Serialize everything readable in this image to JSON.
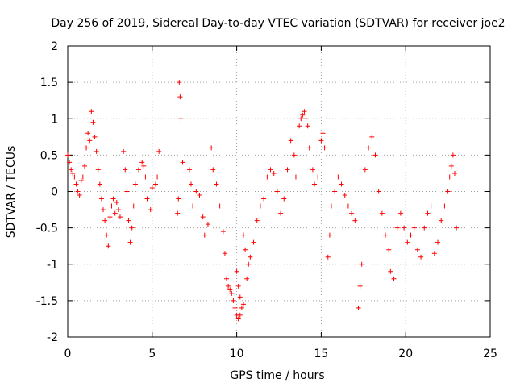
{
  "chart_data": {
    "type": "scatter",
    "title": "Day 256 of 2019, Sidereal Day-to-day VTEC variation (SDTVAR) for receiver joe2",
    "xlabel": "GPS time / hours",
    "ylabel": "SDTVAR / TECUs",
    "xlim": [
      0,
      25
    ],
    "ylim": [
      -2,
      2
    ],
    "xticks": [
      0,
      5,
      10,
      15,
      20,
      25
    ],
    "yticks": [
      -2,
      -1.5,
      -1,
      -0.5,
      0,
      0.5,
      1,
      1.5,
      2
    ],
    "grid": true,
    "marker": "+",
    "marker_color": "#ff0000",
    "series": [
      {
        "name": "SDTVAR",
        "color": "#ff0000",
        "points": [
          [
            0.0,
            0.5
          ],
          [
            0.1,
            0.4
          ],
          [
            0.2,
            0.3
          ],
          [
            0.3,
            0.25
          ],
          [
            0.4,
            0.2
          ],
          [
            0.5,
            0.1
          ],
          [
            0.6,
            0.0
          ],
          [
            0.7,
            -0.05
          ],
          [
            0.8,
            0.15
          ],
          [
            0.9,
            0.2
          ],
          [
            1.0,
            0.35
          ],
          [
            1.1,
            0.6
          ],
          [
            1.2,
            0.8
          ],
          [
            1.3,
            0.7
          ],
          [
            1.4,
            1.1
          ],
          [
            1.5,
            0.95
          ],
          [
            1.6,
            0.75
          ],
          [
            1.7,
            0.55
          ],
          [
            1.8,
            0.3
          ],
          [
            1.9,
            0.1
          ],
          [
            2.0,
            -0.1
          ],
          [
            2.1,
            -0.25
          ],
          [
            2.2,
            -0.4
          ],
          [
            2.3,
            -0.6
          ],
          [
            2.4,
            -0.75
          ],
          [
            2.5,
            -0.35
          ],
          [
            2.6,
            -0.2
          ],
          [
            2.7,
            -0.1
          ],
          [
            2.8,
            -0.3
          ],
          [
            2.9,
            -0.15
          ],
          [
            3.0,
            -0.25
          ],
          [
            3.1,
            -0.35
          ],
          [
            3.3,
            0.55
          ],
          [
            3.4,
            0.3
          ],
          [
            3.5,
            0.0
          ],
          [
            3.6,
            -0.4
          ],
          [
            3.7,
            -0.7
          ],
          [
            3.8,
            -0.5
          ],
          [
            3.9,
            -0.2
          ],
          [
            4.0,
            0.1
          ],
          [
            4.2,
            0.3
          ],
          [
            4.4,
            0.4
          ],
          [
            4.5,
            0.35
          ],
          [
            4.6,
            0.2
          ],
          [
            4.7,
            -0.1
          ],
          [
            4.9,
            -0.25
          ],
          [
            5.0,
            0.05
          ],
          [
            5.2,
            0.1
          ],
          [
            5.3,
            0.2
          ],
          [
            5.4,
            0.55
          ],
          [
            6.5,
            -0.3
          ],
          [
            6.55,
            -0.1
          ],
          [
            6.6,
            1.5
          ],
          [
            6.65,
            1.3
          ],
          [
            6.7,
            1.0
          ],
          [
            6.8,
            0.4
          ],
          [
            7.2,
            0.3
          ],
          [
            7.3,
            0.1
          ],
          [
            7.4,
            -0.2
          ],
          [
            7.6,
            0.0
          ],
          [
            7.8,
            -0.05
          ],
          [
            8.0,
            -0.35
          ],
          [
            8.1,
            -0.6
          ],
          [
            8.3,
            -0.45
          ],
          [
            8.5,
            0.6
          ],
          [
            8.6,
            0.3
          ],
          [
            8.8,
            0.1
          ],
          [
            9.0,
            -0.2
          ],
          [
            9.2,
            -0.55
          ],
          [
            9.3,
            -0.85
          ],
          [
            9.4,
            -1.2
          ],
          [
            9.5,
            -1.3
          ],
          [
            9.6,
            -1.35
          ],
          [
            9.7,
            -1.4
          ],
          [
            9.8,
            -1.5
          ],
          [
            9.9,
            -1.6
          ],
          [
            10.0,
            -1.7
          ],
          [
            10.1,
            -1.75
          ],
          [
            10.2,
            -1.7
          ],
          [
            10.3,
            -1.6
          ],
          [
            10.4,
            -1.55
          ],
          [
            10.0,
            -1.1
          ],
          [
            10.1,
            -1.3
          ],
          [
            10.2,
            -1.45
          ],
          [
            10.4,
            -0.6
          ],
          [
            10.5,
            -0.8
          ],
          [
            10.6,
            -1.2
          ],
          [
            10.7,
            -1.0
          ],
          [
            10.8,
            -0.9
          ],
          [
            11.0,
            -0.7
          ],
          [
            11.2,
            -0.4
          ],
          [
            11.4,
            -0.2
          ],
          [
            11.6,
            -0.1
          ],
          [
            11.8,
            0.2
          ],
          [
            12.0,
            0.3
          ],
          [
            12.2,
            0.25
          ],
          [
            12.4,
            0.0
          ],
          [
            12.6,
            -0.3
          ],
          [
            12.8,
            -0.1
          ],
          [
            13.0,
            0.3
          ],
          [
            13.2,
            0.7
          ],
          [
            13.4,
            0.5
          ],
          [
            13.5,
            0.2
          ],
          [
            13.7,
            0.9
          ],
          [
            13.8,
            1.0
          ],
          [
            13.9,
            1.05
          ],
          [
            14.0,
            1.1
          ],
          [
            14.1,
            1.0
          ],
          [
            14.2,
            0.9
          ],
          [
            14.3,
            0.6
          ],
          [
            14.5,
            0.3
          ],
          [
            14.6,
            0.1
          ],
          [
            14.8,
            0.2
          ],
          [
            15.0,
            0.7
          ],
          [
            15.1,
            0.8
          ],
          [
            15.2,
            0.6
          ],
          [
            15.4,
            -0.9
          ],
          [
            15.5,
            -0.6
          ],
          [
            15.6,
            -0.2
          ],
          [
            15.8,
            0.0
          ],
          [
            16.0,
            0.2
          ],
          [
            16.2,
            0.1
          ],
          [
            16.4,
            -0.05
          ],
          [
            16.6,
            -0.2
          ],
          [
            16.8,
            -0.3
          ],
          [
            17.0,
            -0.4
          ],
          [
            17.2,
            -1.6
          ],
          [
            17.3,
            -1.3
          ],
          [
            17.4,
            -1.0
          ],
          [
            17.6,
            0.3
          ],
          [
            17.8,
            0.6
          ],
          [
            18.0,
            0.75
          ],
          [
            18.2,
            0.5
          ],
          [
            18.4,
            0.0
          ],
          [
            18.6,
            -0.3
          ],
          [
            18.8,
            -0.6
          ],
          [
            19.0,
            -0.8
          ],
          [
            19.1,
            -1.1
          ],
          [
            19.3,
            -1.2
          ],
          [
            19.5,
            -0.5
          ],
          [
            19.7,
            -0.3
          ],
          [
            19.9,
            -0.5
          ],
          [
            20.1,
            -0.7
          ],
          [
            20.3,
            -0.6
          ],
          [
            20.5,
            -0.5
          ],
          [
            20.7,
            -0.8
          ],
          [
            20.9,
            -0.9
          ],
          [
            21.1,
            -0.5
          ],
          [
            21.3,
            -0.3
          ],
          [
            21.5,
            -0.2
          ],
          [
            21.7,
            -0.85
          ],
          [
            21.9,
            -0.7
          ],
          [
            22.1,
            -0.4
          ],
          [
            22.3,
            -0.2
          ],
          [
            22.5,
            0.0
          ],
          [
            22.6,
            0.2
          ],
          [
            22.7,
            0.35
          ],
          [
            22.8,
            0.5
          ],
          [
            22.9,
            0.25
          ],
          [
            23.0,
            -0.5
          ]
        ]
      }
    ]
  }
}
